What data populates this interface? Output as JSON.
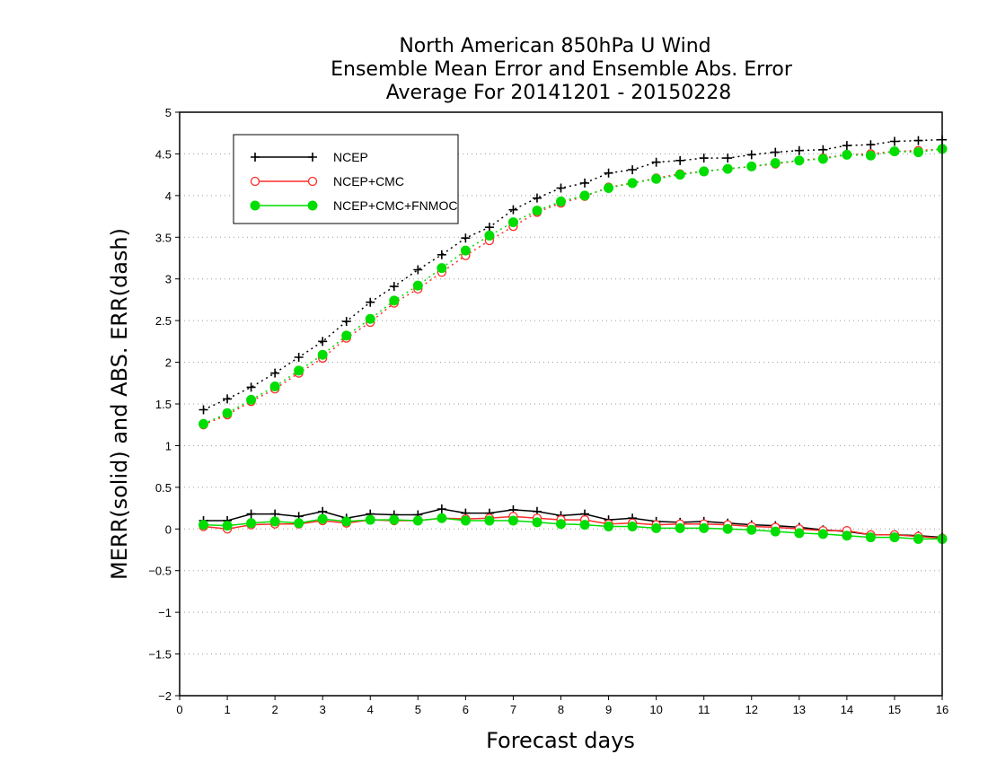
{
  "chart_data": {
    "type": "line",
    "title_lines": [
      "North American 850hPa U Wind",
      "Ensemble Mean Error and Ensemble Abs. Error",
      "Average For 20141201 - 20150228"
    ],
    "xlabel": "Forecast days",
    "ylabel": "MERR(solid) and ABS. ERR(dash)",
    "xlim": [
      0,
      16
    ],
    "ylim": [
      -2,
      5
    ],
    "xticks": [
      0,
      1,
      2,
      3,
      4,
      5,
      6,
      7,
      8,
      9,
      10,
      11,
      12,
      13,
      14,
      15,
      16
    ],
    "yticks": [
      -2,
      -1.5,
      -1,
      -0.5,
      0,
      0.5,
      1,
      1.5,
      2,
      2.5,
      3,
      3.5,
      4,
      4.5,
      5
    ],
    "ytick_labels": [
      "−2",
      "−1.5",
      "−1",
      "−0.5",
      "0",
      "0.5",
      "1",
      "1.5",
      "2",
      "2.5",
      "3",
      "3.5",
      "4",
      "4.5",
      "5"
    ],
    "grid": "horizontal-dotted",
    "legend_position": "top-left",
    "x": [
      0.5,
      1,
      1.5,
      2,
      2.5,
      3,
      3.5,
      4,
      4.5,
      5,
      5.5,
      6,
      6.5,
      7,
      7.5,
      8,
      8.5,
      9,
      9.5,
      10,
      10.5,
      11,
      11.5,
      12,
      12.5,
      13,
      13.5,
      14,
      14.5,
      15,
      15.5,
      16
    ],
    "series": [
      {
        "name": "NCEP",
        "color": "#000000",
        "marker": "plus",
        "merr": [
          0.1,
          0.1,
          0.18,
          0.18,
          0.15,
          0.21,
          0.13,
          0.18,
          0.17,
          0.17,
          0.24,
          0.19,
          0.19,
          0.23,
          0.21,
          0.16,
          0.18,
          0.11,
          0.13,
          0.09,
          0.08,
          0.09,
          0.07,
          0.05,
          0.04,
          0.02,
          -0.01,
          -0.03,
          -0.07,
          -0.07,
          -0.08,
          -0.1
        ],
        "abs_err": [
          1.43,
          1.56,
          1.7,
          1.87,
          2.06,
          2.25,
          2.49,
          2.72,
          2.91,
          3.11,
          3.29,
          3.49,
          3.62,
          3.83,
          3.97,
          4.09,
          4.15,
          4.27,
          4.31,
          4.4,
          4.42,
          4.45,
          4.45,
          4.49,
          4.52,
          4.54,
          4.55,
          4.6,
          4.61,
          4.65,
          4.66,
          4.67
        ]
      },
      {
        "name": "NCEP+CMC",
        "color": "#ff2a2a",
        "marker": "open-circle",
        "merr": [
          0.03,
          0.0,
          0.05,
          0.06,
          0.06,
          0.1,
          0.07,
          0.11,
          0.1,
          0.1,
          0.13,
          0.12,
          0.13,
          0.15,
          0.13,
          0.11,
          0.11,
          0.06,
          0.07,
          0.05,
          0.06,
          0.06,
          0.05,
          0.03,
          0.02,
          0.0,
          -0.02,
          -0.02,
          -0.07,
          -0.07,
          -0.09,
          -0.11
        ],
        "abs_err": [
          1.25,
          1.37,
          1.53,
          1.68,
          1.87,
          2.05,
          2.29,
          2.48,
          2.71,
          2.88,
          3.08,
          3.28,
          3.46,
          3.63,
          3.8,
          3.91,
          3.99,
          4.1,
          4.15,
          4.21,
          4.26,
          4.29,
          4.32,
          4.35,
          4.38,
          4.42,
          4.45,
          4.49,
          4.5,
          4.53,
          4.54,
          4.56
        ]
      },
      {
        "name": "NCEP+CMC+FNMOC",
        "color": "#00dd00",
        "marker": "filled-circle",
        "merr": [
          0.05,
          0.04,
          0.07,
          0.09,
          0.07,
          0.12,
          0.09,
          0.11,
          0.11,
          0.1,
          0.13,
          0.1,
          0.1,
          0.1,
          0.08,
          0.06,
          0.05,
          0.03,
          0.03,
          0.01,
          0.01,
          0.01,
          0.0,
          -0.01,
          -0.03,
          -0.05,
          -0.06,
          -0.08,
          -0.1,
          -0.1,
          -0.12,
          -0.12
        ],
        "abs_err": [
          1.26,
          1.39,
          1.55,
          1.71,
          1.9,
          2.09,
          2.32,
          2.52,
          2.74,
          2.92,
          3.13,
          3.34,
          3.52,
          3.68,
          3.82,
          3.93,
          4.0,
          4.09,
          4.15,
          4.2,
          4.25,
          4.29,
          4.32,
          4.35,
          4.39,
          4.42,
          4.44,
          4.49,
          4.48,
          4.53,
          4.52,
          4.56
        ]
      }
    ]
  }
}
